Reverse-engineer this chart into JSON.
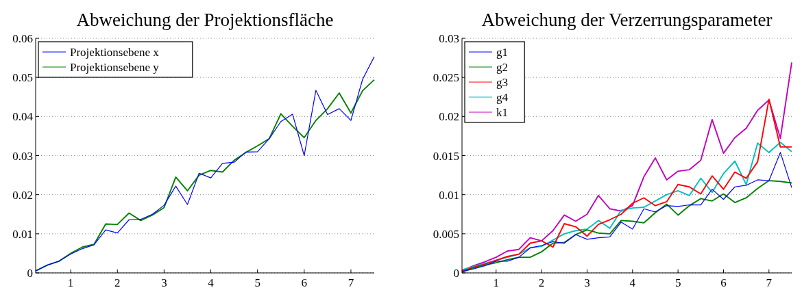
{
  "chart_data": [
    {
      "type": "line",
      "title": "Abweichung der Projektionsfläche",
      "x": [
        0.25,
        0.5,
        0.75,
        1,
        1.25,
        1.5,
        1.75,
        2,
        2.25,
        2.5,
        2.75,
        3,
        3.25,
        3.5,
        3.75,
        4,
        4.25,
        4.5,
        4.75,
        5,
        5.25,
        5.5,
        5.75,
        6,
        6.25,
        6.5,
        6.75,
        7,
        7.25,
        7.5
      ],
      "series": [
        {
          "name": "Projektionsebene x",
          "color": "#0000ff",
          "values": [
            0.0005,
            0.002,
            0.003,
            0.0048,
            0.0062,
            0.0072,
            0.011,
            0.0102,
            0.0136,
            0.0137,
            0.015,
            0.0173,
            0.0222,
            0.0175,
            0.0255,
            0.0243,
            0.028,
            0.0283,
            0.0309,
            0.031,
            0.0343,
            0.0387,
            0.0406,
            0.03,
            0.0467,
            0.0405,
            0.042,
            0.039,
            0.0495,
            0.0553
          ]
        },
        {
          "name": "Projektionsebene y",
          "color": "#008000",
          "values": [
            0.0005,
            0.002,
            0.003,
            0.005,
            0.0066,
            0.0073,
            0.0125,
            0.0124,
            0.0153,
            0.0134,
            0.0148,
            0.0167,
            0.0245,
            0.021,
            0.025,
            0.0262,
            0.0258,
            0.0288,
            0.0308,
            0.0325,
            0.0343,
            0.0407,
            0.0375,
            0.0346,
            0.039,
            0.042,
            0.046,
            0.0409,
            0.0466,
            0.0494
          ]
        }
      ],
      "xlim": [
        0.25,
        7.5
      ],
      "xticks": [
        1,
        2,
        3,
        4,
        5,
        6,
        7
      ],
      "ylim": [
        0,
        0.06
      ],
      "yticks": [
        0,
        0.01,
        0.02,
        0.03,
        0.04,
        0.05,
        0.06
      ],
      "grid": "y",
      "legend": "top left",
      "marker": "none",
      "line_style": "solid"
    },
    {
      "type": "line",
      "title": "Abweichung der Verzerrungsparameter",
      "x": [
        0.25,
        0.5,
        0.75,
        1,
        1.25,
        1.5,
        1.75,
        2,
        2.25,
        2.5,
        2.75,
        3,
        3.25,
        3.5,
        3.75,
        4,
        4.25,
        4.5,
        4.75,
        5,
        5.25,
        5.5,
        5.75,
        6,
        6.25,
        6.5,
        6.75,
        7,
        7.25,
        7.5
      ],
      "series": [
        {
          "name": "g1",
          "color": "#0000ff",
          "values": [
            0.0002,
            0.0005,
            0.0009,
            0.0015,
            0.0015,
            0.002,
            0.0032,
            0.0035,
            0.004,
            0.0038,
            0.0049,
            0.0043,
            0.0045,
            0.0046,
            0.0065,
            0.0056,
            0.0082,
            0.0078,
            0.0086,
            0.0085,
            0.0087,
            0.0087,
            0.0107,
            0.0094,
            0.011,
            0.0112,
            0.0119,
            0.0118,
            0.0154,
            0.0109
          ]
        },
        {
          "name": "g2",
          "color": "#008000",
          "values": [
            0.0001,
            0.0006,
            0.001,
            0.0013,
            0.0017,
            0.002,
            0.002,
            0.0027,
            0.0038,
            0.0039,
            0.0049,
            0.0055,
            0.0051,
            0.005,
            0.0067,
            0.0066,
            0.0064,
            0.0077,
            0.0088,
            0.0074,
            0.0086,
            0.0095,
            0.0092,
            0.0101,
            0.009,
            0.0096,
            0.0108,
            0.0118,
            0.0117,
            0.0115
          ]
        },
        {
          "name": "g3",
          "color": "#ff0000",
          "values": [
            0.0002,
            0.0007,
            0.0011,
            0.0016,
            0.0021,
            0.0024,
            0.0038,
            0.0041,
            0.0033,
            0.0063,
            0.0059,
            0.0047,
            0.0062,
            0.0068,
            0.0075,
            0.0089,
            0.0096,
            0.0086,
            0.0091,
            0.0113,
            0.011,
            0.0101,
            0.0124,
            0.0107,
            0.0129,
            0.0121,
            0.0142,
            0.0222,
            0.0161,
            0.0161
          ]
        },
        {
          "name": "g4",
          "color": "#00bfbf",
          "values": [
            0.0004,
            0.0008,
            0.0012,
            0.0016,
            0.002,
            0.0024,
            0.0032,
            0.0034,
            0.0042,
            0.005,
            0.0054,
            0.0056,
            0.0067,
            0.0057,
            0.008,
            0.0083,
            0.0084,
            0.0092,
            0.01,
            0.0105,
            0.0099,
            0.0121,
            0.0103,
            0.0127,
            0.0143,
            0.0113,
            0.0166,
            0.0154,
            0.0167,
            0.0155
          ]
        },
        {
          "name": "k1",
          "color": "#bf00bf",
          "values": [
            0.0003,
            0.0009,
            0.0014,
            0.002,
            0.0028,
            0.003,
            0.0045,
            0.0041,
            0.0054,
            0.0074,
            0.0066,
            0.0075,
            0.0099,
            0.0082,
            0.0079,
            0.0086,
            0.0123,
            0.0147,
            0.0119,
            0.013,
            0.0132,
            0.0144,
            0.0196,
            0.0153,
            0.0173,
            0.0185,
            0.0208,
            0.0221,
            0.0172,
            0.0269
          ]
        }
      ],
      "xlim": [
        0.25,
        7.5
      ],
      "xticks": [
        1,
        2,
        3,
        4,
        5,
        6,
        7
      ],
      "ylim": [
        0,
        0.03
      ],
      "yticks": [
        0,
        0.005,
        0.01,
        0.015,
        0.02,
        0.025,
        0.03
      ],
      "grid": "y",
      "legend": "top left",
      "marker": "none",
      "line_style": "solid"
    }
  ]
}
